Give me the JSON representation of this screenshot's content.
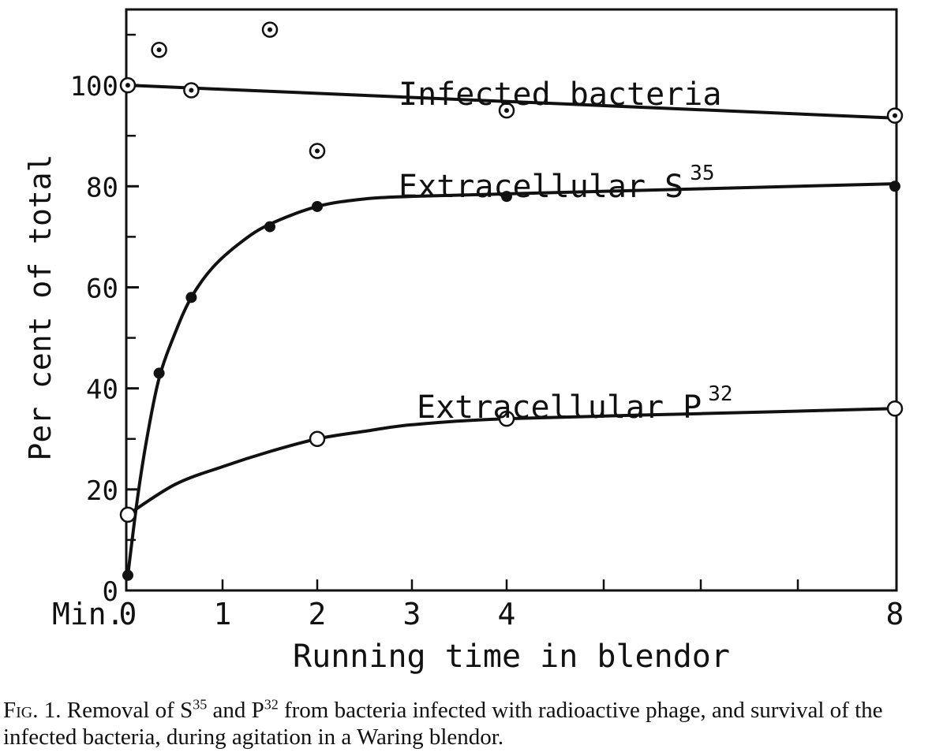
{
  "chart_data": {
    "type": "line",
    "xlabel": "Running time in blendor",
    "ylabel": "Per cent of total",
    "x_unit_label": "Min.",
    "xlim": [
      0,
      8
    ],
    "ylim": [
      0,
      115
    ],
    "x_ticks": [
      {
        "value": 0,
        "label": "0"
      },
      {
        "value": 1,
        "label": "1"
      },
      {
        "value": 2,
        "label": "2"
      },
      {
        "value": 3,
        "label": "3"
      },
      {
        "value": 4,
        "label": "4"
      },
      {
        "value": 8,
        "label": "8"
      }
    ],
    "x_minor_ticks": [
      1,
      2,
      3,
      4,
      5,
      6,
      7
    ],
    "y_ticks": [
      {
        "value": 0,
        "label": "0"
      },
      {
        "value": 20,
        "label": "20"
      },
      {
        "value": 40,
        "label": "40"
      },
      {
        "value": 60,
        "label": "60"
      },
      {
        "value": 80,
        "label": "80"
      },
      {
        "value": 100,
        "label": "100"
      }
    ],
    "y_minor_ticks": [
      10,
      30,
      50,
      70,
      90,
      110
    ],
    "grid": false,
    "series": [
      {
        "name": "Infected bacteria",
        "marker": "dotted-circle",
        "label_base": "Infected bacteria",
        "label_sup": "",
        "points": [
          {
            "x": 0,
            "y": 100
          },
          {
            "x": 0.33,
            "y": 107
          },
          {
            "x": 0.67,
            "y": 99
          },
          {
            "x": 1.5,
            "y": 111
          },
          {
            "x": 2,
            "y": 87
          },
          {
            "x": 4,
            "y": 95
          },
          {
            "x": 8,
            "y": 94
          }
        ],
        "curve": [
          {
            "x": 0,
            "y": 100
          },
          {
            "x": 8,
            "y": 93.5
          }
        ]
      },
      {
        "name": "Extracellular S35",
        "marker": "filled-circle",
        "label_base": "Extracellular S",
        "label_sup": "35",
        "points": [
          {
            "x": 0,
            "y": 3
          },
          {
            "x": 0.33,
            "y": 43
          },
          {
            "x": 0.67,
            "y": 58
          },
          {
            "x": 1.5,
            "y": 72
          },
          {
            "x": 2,
            "y": 76
          },
          {
            "x": 4,
            "y": 78
          },
          {
            "x": 8,
            "y": 80
          }
        ],
        "curve": [
          {
            "x": 0,
            "y": 3
          },
          {
            "x": 0.1,
            "y": 18
          },
          {
            "x": 0.2,
            "y": 30
          },
          {
            "x": 0.33,
            "y": 42
          },
          {
            "x": 0.5,
            "y": 51
          },
          {
            "x": 0.67,
            "y": 58
          },
          {
            "x": 0.9,
            "y": 64
          },
          {
            "x": 1.2,
            "y": 69
          },
          {
            "x": 1.5,
            "y": 72.5
          },
          {
            "x": 2,
            "y": 76
          },
          {
            "x": 2.5,
            "y": 77.5
          },
          {
            "x": 3,
            "y": 78
          },
          {
            "x": 4,
            "y": 78.5
          },
          {
            "x": 6,
            "y": 79.5
          },
          {
            "x": 8,
            "y": 80.5
          }
        ]
      },
      {
        "name": "Extracellular P32",
        "marker": "open-circle",
        "label_base": "Extracellular P",
        "label_sup": "32",
        "points": [
          {
            "x": 0,
            "y": 15
          },
          {
            "x": 2,
            "y": 30
          },
          {
            "x": 4,
            "y": 34
          },
          {
            "x": 8,
            "y": 36
          }
        ],
        "curve": [
          {
            "x": 0,
            "y": 15
          },
          {
            "x": 0.5,
            "y": 21
          },
          {
            "x": 1,
            "y": 24.5
          },
          {
            "x": 1.5,
            "y": 27.5
          },
          {
            "x": 2,
            "y": 30
          },
          {
            "x": 2.5,
            "y": 31.5
          },
          {
            "x": 3,
            "y": 32.8
          },
          {
            "x": 4,
            "y": 34
          },
          {
            "x": 6,
            "y": 35
          },
          {
            "x": 8,
            "y": 36
          }
        ]
      }
    ]
  },
  "caption": {
    "fig_label": "Fig. 1.",
    "part1": "Removal of S",
    "sup1": "35",
    "part2": " and P",
    "sup2": "32",
    "part3": " from bacteria infected with radioactive phage, and survival of the infected bacteria, during agitation in a Waring blendor."
  }
}
